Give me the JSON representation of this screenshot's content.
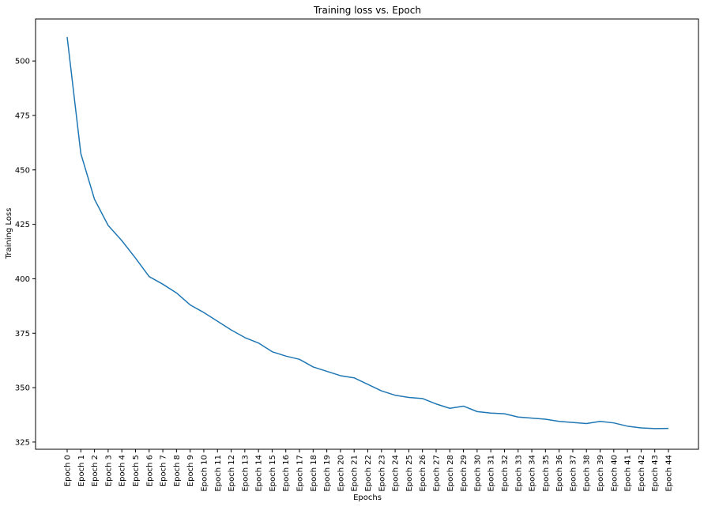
{
  "chart_data": {
    "type": "line",
    "title": "Training loss vs. Epoch",
    "xlabel": "Epochs",
    "ylabel": "Training Loss",
    "categories": [
      "Epoch 0",
      "Epoch 1",
      "Epoch 2",
      "Epoch 3",
      "Epoch 4",
      "Epoch 5",
      "Epoch 6",
      "Epoch 7",
      "Epoch 8",
      "Epoch 9",
      "Epoch 10",
      "Epoch 11",
      "Epoch 12",
      "Epoch 13",
      "Epoch 14",
      "Epoch 15",
      "Epoch 16",
      "Epoch 17",
      "Epoch 18",
      "Epoch 19",
      "Epoch 20",
      "Epoch 21",
      "Epoch 22",
      "Epoch 23",
      "Epoch 24",
      "Epoch 25",
      "Epoch 26",
      "Epoch 27",
      "Epoch 28",
      "Epoch 29",
      "Epoch 30",
      "Epoch 31",
      "Epoch 32",
      "Epoch 33",
      "Epoch 34",
      "Epoch 35",
      "Epoch 36",
      "Epoch 37",
      "Epoch 38",
      "Epoch 39",
      "Epoch 40",
      "Epoch 41",
      "Epoch 42",
      "Epoch 43",
      "Epoch 44"
    ],
    "values": [
      511,
      457.5,
      436.5,
      424.5,
      417.5,
      409.5,
      401,
      397.5,
      393.5,
      388,
      384.5,
      380.5,
      376.5,
      373,
      370.5,
      366.5,
      364.5,
      363,
      359.5,
      357.5,
      355.5,
      354.5,
      351.5,
      348.5,
      346.5,
      345.5,
      345,
      342.5,
      340.5,
      341.5,
      339,
      338.3,
      338,
      336.5,
      336,
      335.5,
      334.5,
      334,
      333.5,
      334.5,
      333.8,
      332.3,
      331.5,
      331.2,
      331.3
    ],
    "ylim": [
      321.7,
      519.3
    ],
    "yticks": [
      325,
      350,
      375,
      400,
      425,
      450,
      475,
      500
    ],
    "grid": false,
    "line_color": "#1f77b4"
  }
}
